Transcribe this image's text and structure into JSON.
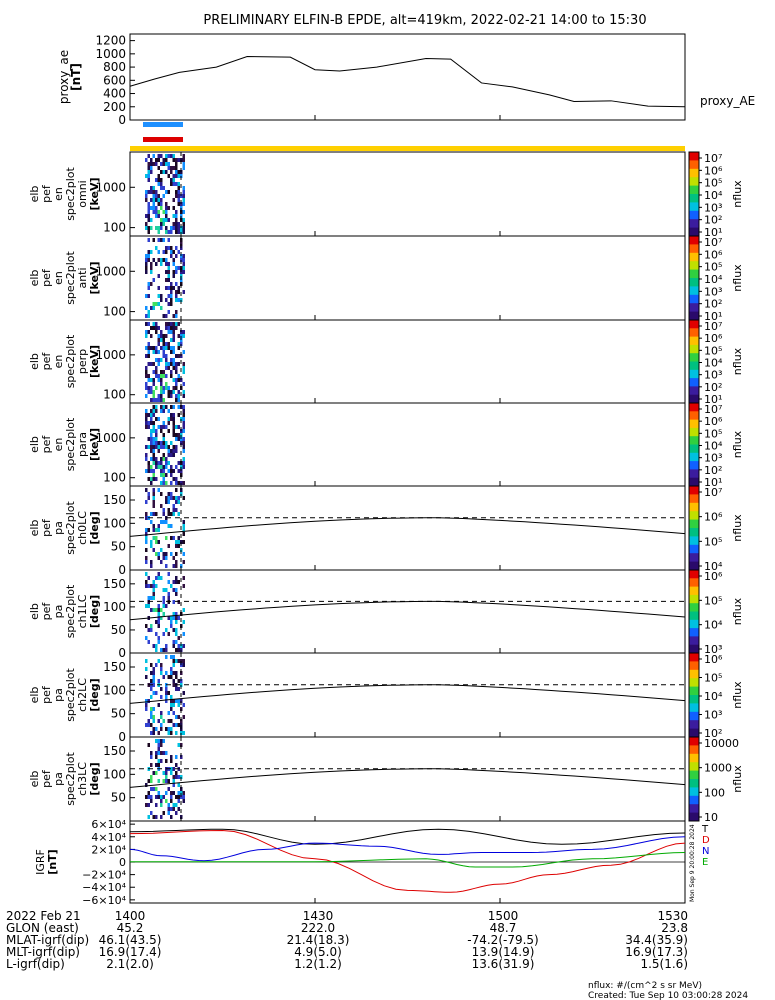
{
  "title": "PRELIMINARY ELFIN-B EPDE, alt=419km, 2022-02-21 14:00 to 15:30",
  "colors": {
    "blue_bar": "#1e90ff",
    "red_bar": "#dd0000",
    "yellow_bar": "#ffd000"
  },
  "chart_data": [
    {
      "type": "line",
      "id": "proxy_ae",
      "ylabel": [
        "proxy_ae",
        "[nT]"
      ],
      "legend": "proxy_AE",
      "ylim": [
        0,
        1300
      ],
      "yticks": [
        "1200",
        "1000",
        "800",
        "600",
        "400",
        "200",
        "0"
      ],
      "ytick_values": [
        1200,
        1000,
        800,
        600,
        400,
        200,
        0
      ],
      "x": [
        0,
        4,
        8,
        14,
        19,
        26,
        30,
        34,
        40,
        48,
        52,
        57,
        62,
        68,
        72,
        78,
        84,
        90
      ],
      "values": [
        510,
        620,
        720,
        800,
        960,
        950,
        760,
        740,
        800,
        930,
        920,
        560,
        500,
        380,
        280,
        290,
        210,
        200
      ]
    },
    {
      "type": "heatmap",
      "id": "omni",
      "ylabel": [
        "elb",
        "pef",
        "en",
        "spec2plot",
        "omni",
        "[keV]"
      ],
      "yticks": [
        "1000",
        "100"
      ],
      "cbar_label": "nflux",
      "cbar_ticks": [
        "10⁷",
        "10⁶",
        "10⁵",
        "10⁴",
        "10³",
        "10²",
        "10¹"
      ]
    },
    {
      "type": "heatmap",
      "id": "anti",
      "ylabel": [
        "elb",
        "pef",
        "en",
        "spec2plot",
        "anti",
        "[keV]"
      ],
      "yticks": [
        "1000",
        "100"
      ],
      "cbar_label": "nflux",
      "cbar_ticks": [
        "10⁷",
        "10⁶",
        "10⁵",
        "10⁴",
        "10³",
        "10²",
        "10¹"
      ]
    },
    {
      "type": "heatmap",
      "id": "perp",
      "ylabel": [
        "elb",
        "pef",
        "en",
        "spec2plot",
        "perp",
        "[keV]"
      ],
      "yticks": [
        "1000",
        "100"
      ],
      "cbar_label": "nflux",
      "cbar_ticks": [
        "10⁷",
        "10⁶",
        "10⁵",
        "10⁴",
        "10³",
        "10²",
        "10¹"
      ]
    },
    {
      "type": "heatmap",
      "id": "para",
      "ylabel": [
        "elb",
        "pef",
        "en",
        "spec2plot",
        "para",
        "[keV]"
      ],
      "yticks": [
        "1000",
        "100"
      ],
      "cbar_label": "nflux",
      "cbar_ticks": [
        "10⁷",
        "10⁶",
        "10⁵",
        "10⁴",
        "10³",
        "10²",
        "10¹"
      ]
    },
    {
      "type": "heatmap",
      "id": "ch0LC",
      "ylabel": [
        "elb",
        "pef",
        "pa",
        "spec2plot",
        "ch0LC",
        "[deg]"
      ],
      "yticks": [
        "150",
        "100",
        "50",
        "0"
      ],
      "ytick_values": [
        150,
        100,
        50,
        0
      ],
      "ylim": [
        0,
        180
      ],
      "cbar_label": "nflux",
      "cbar_ticks": [
        "10⁷",
        "10⁶",
        "10⁵",
        "10⁴"
      ],
      "solid_curve": {
        "x": [
          0,
          50,
          90
        ],
        "values": [
          72,
          112,
          78
        ]
      },
      "dashed_level": 112
    },
    {
      "type": "heatmap",
      "id": "ch1LC",
      "ylabel": [
        "elb",
        "pef",
        "pa",
        "spec2plot",
        "ch1LC",
        "[deg]"
      ],
      "yticks": [
        "150",
        "100",
        "50",
        "0"
      ],
      "ytick_values": [
        150,
        100,
        50,
        0
      ],
      "ylim": [
        0,
        180
      ],
      "cbar_label": "nflux",
      "cbar_ticks": [
        "10⁶",
        "10⁵",
        "10⁴",
        "10³"
      ],
      "solid_curve": {
        "x": [
          0,
          50,
          90
        ],
        "values": [
          72,
          112,
          78
        ]
      },
      "dashed_level": 112
    },
    {
      "type": "heatmap",
      "id": "ch2LC",
      "ylabel": [
        "elb",
        "pef",
        "pa",
        "spec2plot",
        "ch2LC",
        "[deg]"
      ],
      "yticks": [
        "150",
        "100",
        "50",
        "0"
      ],
      "ytick_values": [
        150,
        100,
        50,
        0
      ],
      "ylim": [
        0,
        180
      ],
      "cbar_label": "nflux",
      "cbar_ticks": [
        "10⁶",
        "10⁵",
        "10⁴",
        "10³",
        "10²"
      ],
      "solid_curve": {
        "x": [
          0,
          50,
          90
        ],
        "values": [
          72,
          112,
          78
        ]
      },
      "dashed_level": 112
    },
    {
      "type": "heatmap",
      "id": "ch3LC",
      "ylabel": [
        "elb",
        "pef",
        "pa",
        "spec2plot",
        "ch3LC",
        "[deg]"
      ],
      "yticks": [
        "150",
        "100",
        "50"
      ],
      "ytick_values": [
        150,
        100,
        50
      ],
      "ylim": [
        0,
        180
      ],
      "cbar_label": "nflux",
      "cbar_ticks": [
        "10000",
        "1000",
        "100",
        "10"
      ],
      "solid_curve": {
        "x": [
          0,
          50,
          90
        ],
        "values": [
          72,
          112,
          78
        ]
      },
      "dashed_level": 112
    },
    {
      "type": "line",
      "id": "igrf",
      "ylabel": [
        "IGRF",
        "[nT]"
      ],
      "ylim": [
        -65000,
        65000
      ],
      "yticks": [
        "6×10⁴",
        "4×10⁴",
        "2×10⁴",
        "0",
        "−2×10⁴",
        "−4×10⁴",
        "−6×10⁴"
      ],
      "ytick_values": [
        60000,
        40000,
        20000,
        0,
        -20000,
        -40000,
        -60000
      ],
      "series": [
        {
          "name": "T",
          "color": "#000000",
          "x": [
            0,
            15,
            30,
            50,
            70,
            90
          ],
          "values": [
            48000,
            52000,
            28000,
            52000,
            28000,
            46000
          ]
        },
        {
          "name": "D",
          "color": "#dd0000",
          "x": [
            0,
            15,
            30,
            45,
            52,
            60,
            68,
            78,
            90
          ],
          "values": [
            45000,
            50000,
            5000,
            -45000,
            -48000,
            -35000,
            -20000,
            -5000,
            30000
          ]
        },
        {
          "name": "N",
          "color": "#0000dd",
          "x": [
            0,
            5,
            12,
            22,
            30,
            40,
            50,
            57,
            65,
            75,
            90
          ],
          "values": [
            20000,
            10000,
            2000,
            20000,
            30000,
            25000,
            12000,
            15000,
            15000,
            20000,
            40000
          ]
        },
        {
          "name": "E",
          "color": "#00aa00",
          "x": [
            0,
            30,
            48,
            56,
            62,
            75,
            90
          ],
          "values": [
            500,
            500,
            5000,
            -8000,
            -8000,
            5000,
            15000
          ]
        }
      ]
    }
  ],
  "xaxis": {
    "ticks": [
      {
        "label": "1400",
        "t": 0
      },
      {
        "label": "1430",
        "t": 30
      },
      {
        "label": "1500",
        "t": 60
      },
      {
        "label": "1530",
        "t": 90
      }
    ],
    "rows": [
      {
        "label": "2022 Feb 21",
        "values": [
          "1400",
          "1430",
          "1500",
          "1530"
        ]
      },
      {
        "label": "GLON (east)",
        "values": [
          "45.2",
          "222.0",
          "48.7",
          "23.8"
        ]
      },
      {
        "label": "MLAT-igrf(dip)",
        "values": [
          "46.1(43.5)",
          "21.4(18.3)",
          "-74.2(-79.5)",
          "34.4(35.9)"
        ]
      },
      {
        "label": "MLT-igrf(dip)",
        "values": [
          "16.9(17.4)",
          "4.9(5.0)",
          "13.9(14.9)",
          "16.9(17.3)"
        ]
      },
      {
        "label": "L-igrf(dip)",
        "values": [
          "2.1(2.0)",
          "1.2(1.2)",
          "13.6(31.9)",
          "1.5(1.6)"
        ]
      }
    ]
  },
  "footer": {
    "units": "nflux: #/(cm^2 s sr MeV)",
    "created": "Created: Tue Sep 10 03:00:28 2024",
    "side_stamp": "Mon Sep 9 20:00:28 2024"
  }
}
